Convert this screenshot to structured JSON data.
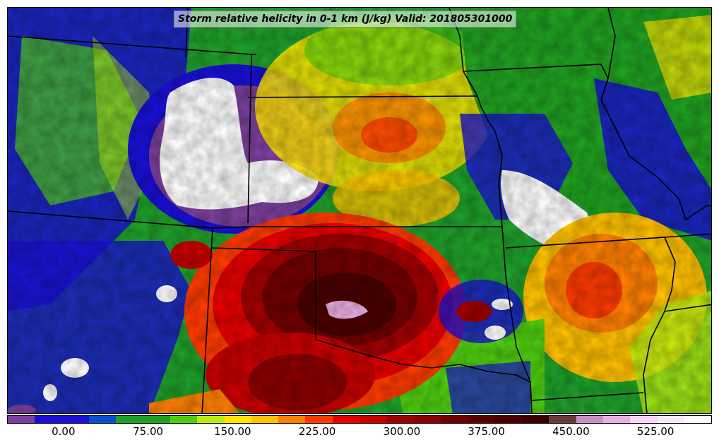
{
  "title": "Storm relative helicity in 0-1 km (J/kg) Valid: 201805301000",
  "colorbar": {
    "colors": [
      "#7b3f9c",
      "#1a0fd6",
      "#1a0fd6",
      "#0a4fd0",
      "#1fa02a",
      "#20a020",
      "#4fce10",
      "#b8ec10",
      "#ffe400",
      "#ffc000",
      "#ff8000",
      "#ff3a00",
      "#e80000",
      "#c80000",
      "#a00000",
      "#8a0000",
      "#700000",
      "#5a0000",
      "#4a0000",
      "#3c0000",
      "#6a3a3a",
      "#c88fc0",
      "#e8b0e0",
      "#f6d6f2",
      "#fbe8f8",
      "#ffffff"
    ],
    "tick_labels": [
      "0.00",
      "75.00",
      "150.00",
      "225.00",
      "300.00",
      "375.00",
      "450.00",
      "525.00"
    ],
    "tick_values": [
      0,
      75,
      150,
      225,
      300,
      375,
      450,
      525
    ],
    "range": [
      -50,
      575
    ]
  }
}
